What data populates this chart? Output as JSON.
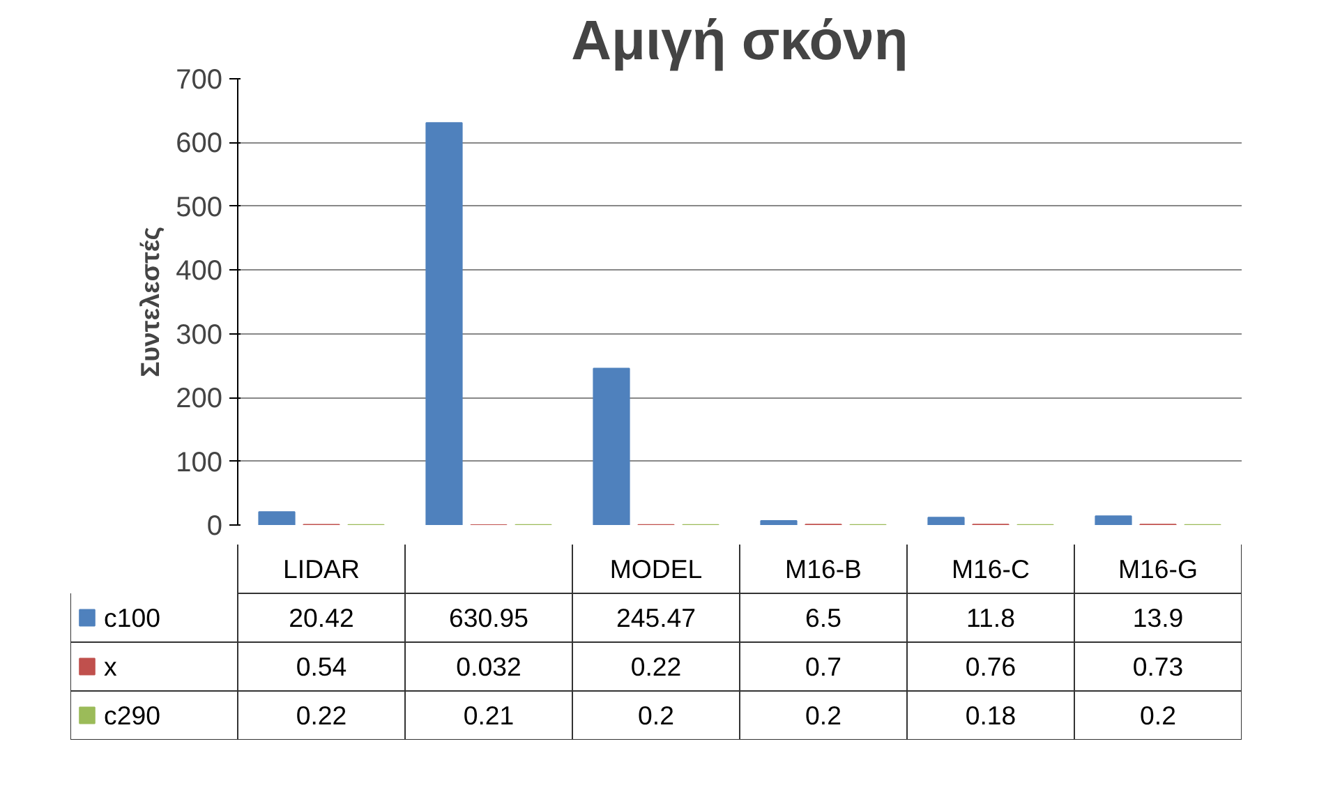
{
  "chart_data": {
    "type": "bar",
    "title": "Αμιγή σκόνη",
    "ylabel": "Συντελεστές",
    "categories": [
      "LIDAR",
      null,
      "MODEL",
      "M16-B",
      "M16-C",
      "M16-G"
    ],
    "series": [
      {
        "name": "c100",
        "color": "#4f81bd",
        "values": [
          20.42,
          630.95,
          245.47,
          6.5,
          11.8,
          13.9
        ]
      },
      {
        "name": "x",
        "color": "#c0504d",
        "values": [
          0.54,
          0.032,
          0.22,
          0.7,
          0.76,
          0.73
        ]
      },
      {
        "name": "c290",
        "color": "#9bbb59",
        "values": [
          0.22,
          0.21,
          0.2,
          0.2,
          0.18,
          0.2
        ]
      }
    ],
    "ylim": [
      0,
      700
    ],
    "yticks": [
      0,
      100,
      200,
      300,
      400,
      500,
      600,
      700
    ],
    "grid": "y",
    "legend": "bottom",
    "data_labels": true
  }
}
